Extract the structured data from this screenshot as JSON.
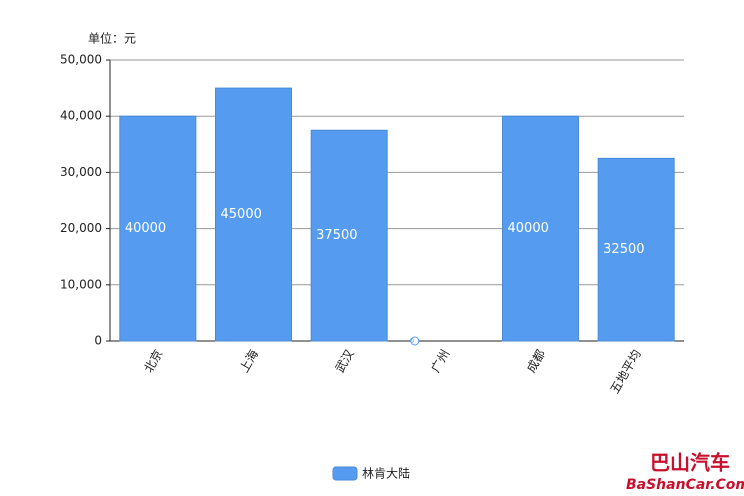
{
  "chart_data": {
    "type": "bar",
    "unit_label": "单位：元",
    "categories": [
      "北京",
      "上海",
      "武汉",
      "广州",
      "成都",
      "五地平均"
    ],
    "series": [
      {
        "name": "林肯大陆",
        "color": "#559cf0",
        "values": [
          40000,
          45000,
          37500,
          0,
          40000,
          32500
        ]
      }
    ],
    "ylim": [
      0,
      50000
    ],
    "yticks": [
      0,
      {
        "value": 10000,
        "label": "10,000"
      },
      {
        "value": 20000,
        "label": "20,000"
      },
      {
        "value": 30000,
        "label": "30,000"
      },
      {
        "value": 40000,
        "label": "40,000"
      },
      {
        "value": 50000,
        "label": "50,000"
      }
    ],
    "grid": true,
    "legend": "bottom"
  },
  "watermark": {
    "title": "巴山汽车",
    "url": "BaShanCar.Com"
  }
}
